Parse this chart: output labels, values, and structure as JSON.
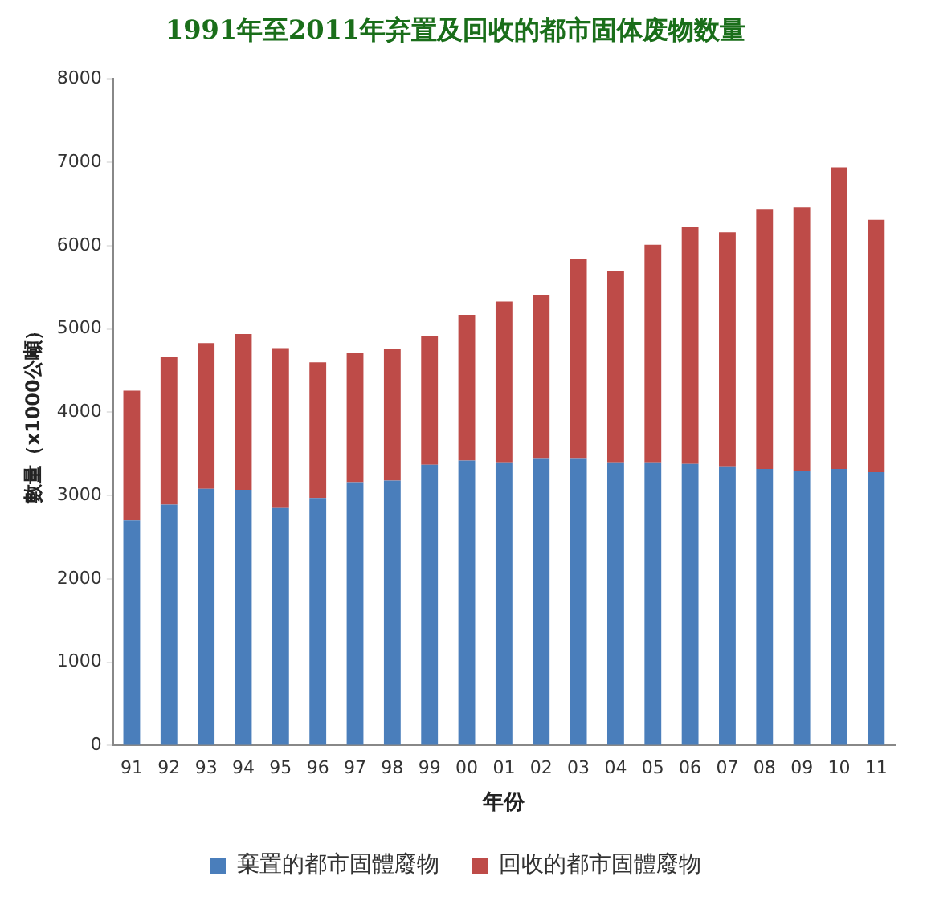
{
  "chart_data": {
    "type": "bar",
    "title": "1991年至2011年弃置及回收的都市固体废物数量",
    "xlabel": "年份",
    "ylabel": "數量（x1000公噸）",
    "categories": [
      "91",
      "92",
      "93",
      "94",
      "95",
      "96",
      "97",
      "98",
      "99",
      "00",
      "01",
      "02",
      "03",
      "04",
      "05",
      "06",
      "07",
      "08",
      "09",
      "10",
      "11"
    ],
    "stacked": true,
    "grid": false,
    "legend": "bottom",
    "ylim": [
      0,
      8000
    ],
    "yticks": [
      0,
      1000,
      2000,
      3000,
      4000,
      5000,
      6000,
      7000,
      8000
    ],
    "series": [
      {
        "name": "棄置的都市固體廢物",
        "color": "#4a7ebb",
        "values": [
          2700,
          2890,
          3080,
          3070,
          2860,
          2970,
          3160,
          3180,
          3370,
          3420,
          3400,
          3450,
          3450,
          3400,
          3400,
          3380,
          3350,
          3320,
          3290,
          3320,
          3280
        ]
      },
      {
        "name": "回收的都市固體廢物",
        "color": "#be4b48",
        "values": [
          1560,
          1770,
          1750,
          1870,
          1910,
          1630,
          1550,
          1580,
          1550,
          1750,
          1930,
          1960,
          2390,
          2300,
          2610,
          2840,
          2810,
          3120,
          3170,
          3620,
          3030
        ]
      }
    ]
  }
}
